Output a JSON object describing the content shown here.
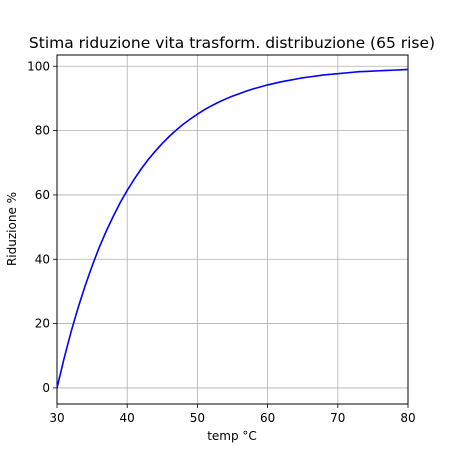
{
  "chart_data": {
    "type": "line",
    "title": "Stima riduzione vita trasform. distribuzione (65 rise)",
    "xlabel": "temp °C",
    "ylabel": "Riduzione %",
    "xlim": [
      30,
      80
    ],
    "ylim": [
      -5,
      103.5
    ],
    "xticks": [
      30,
      40,
      50,
      60,
      70,
      80
    ],
    "yticks": [
      0,
      20,
      40,
      60,
      80,
      100
    ],
    "grid": true,
    "series": [
      {
        "color": "#0000ff",
        "x": [
          30,
          31,
          32,
          33,
          34,
          35,
          36,
          37,
          38,
          39,
          40,
          41,
          42,
          43,
          44,
          45,
          46,
          47,
          48,
          49,
          50,
          51,
          52,
          53,
          54,
          55,
          56,
          57,
          58,
          59,
          60,
          61,
          62,
          63,
          64,
          65,
          66,
          67,
          68,
          69,
          70,
          71,
          72,
          73,
          74,
          75,
          76,
          77,
          78,
          79,
          80
        ],
        "y": [
          0,
          9.1,
          17.4,
          24.9,
          31.7,
          37.9,
          43.6,
          48.7,
          53.3,
          57.6,
          61.4,
          64.9,
          68.1,
          71.0,
          73.6,
          76.0,
          78.2,
          80.2,
          82.0,
          83.6,
          85.1,
          86.5,
          87.7,
          88.8,
          89.8,
          90.7,
          91.5,
          92.3,
          93.0,
          93.6,
          94.2,
          94.7,
          95.2,
          95.6,
          96.0,
          96.4,
          96.7,
          97.0,
          97.3,
          97.5,
          97.7,
          97.9,
          98.1,
          98.3,
          98.4,
          98.5,
          98.6,
          98.7,
          98.8,
          98.9,
          99.0
        ]
      }
    ]
  }
}
